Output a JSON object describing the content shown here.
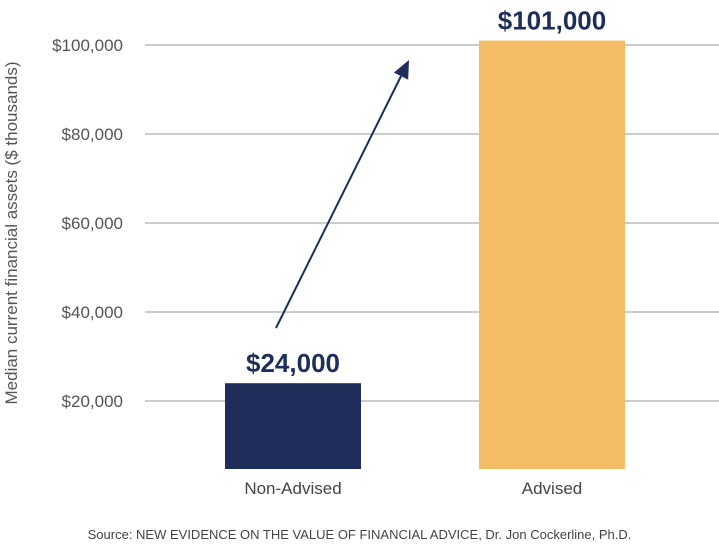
{
  "chart_data": {
    "type": "bar",
    "categories": [
      "Non-Advised",
      "Advised"
    ],
    "values": [
      24000,
      101000
    ],
    "value_labels": [
      "$24,000",
      "$101,000"
    ],
    "bar_colors": [
      "#1f2d5a",
      "#f3bd66"
    ],
    "ylabel": "Median current financial assets ($ thousands)",
    "yticks": [
      20000,
      40000,
      60000,
      80000,
      100000
    ],
    "ytick_labels": [
      "$20,000",
      "$40,000",
      "$60,000",
      "$80,000",
      "$100,000"
    ],
    "ylim": [
      5000,
      102000
    ],
    "grid": true,
    "annotation": "arrow from Non-Advised bar toward Advised bar"
  },
  "colors": {
    "label_navy": "#1f2d5a",
    "gridline": "#9a9a9a",
    "arrow": "#1f2d5a"
  },
  "source_text": "Source: NEW EVIDENCE ON THE VALUE OF FINANCIAL ADVICE, Dr. Jon Cockerline, Ph.D."
}
